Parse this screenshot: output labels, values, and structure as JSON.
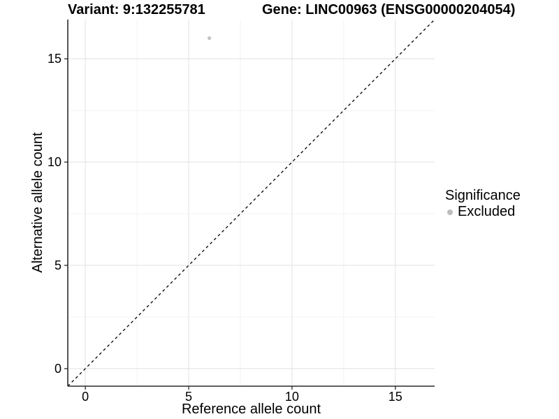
{
  "chart_data": {
    "type": "scatter",
    "titles": {
      "variant": "Variant: 9:132255781",
      "gene": "Gene: LINC00963 (ENSG00000204054)"
    },
    "xlabel": "Reference allele count",
    "ylabel": "Alternative allele count",
    "xlim": [
      -0.85,
      16.9
    ],
    "ylim": [
      -0.85,
      16.9
    ],
    "x_ticks": [
      0,
      5,
      10,
      15
    ],
    "y_ticks": [
      0,
      5,
      10,
      15
    ],
    "x_minor_ticks": [
      2.5,
      7.5,
      12.5
    ],
    "y_minor_ticks": [
      2.5,
      7.5,
      12.5
    ],
    "grid": "major+minor",
    "series": [
      {
        "name": "Excluded",
        "color": "#c3c3c3",
        "points": [
          {
            "x": 6,
            "y": 16
          }
        ]
      }
    ],
    "reference_line": {
      "kind": "identity y=x",
      "style": "dashed",
      "color": "#000000"
    },
    "legend": {
      "title": "Significance",
      "position": "right",
      "items": [
        {
          "label": "Excluded",
          "color": "#bdbdbd"
        }
      ]
    },
    "colors": {
      "major_grid": "#e4e4e4",
      "minor_grid": "#f1f1f1",
      "axis": "#2b2b2b",
      "text": "#000000"
    }
  }
}
